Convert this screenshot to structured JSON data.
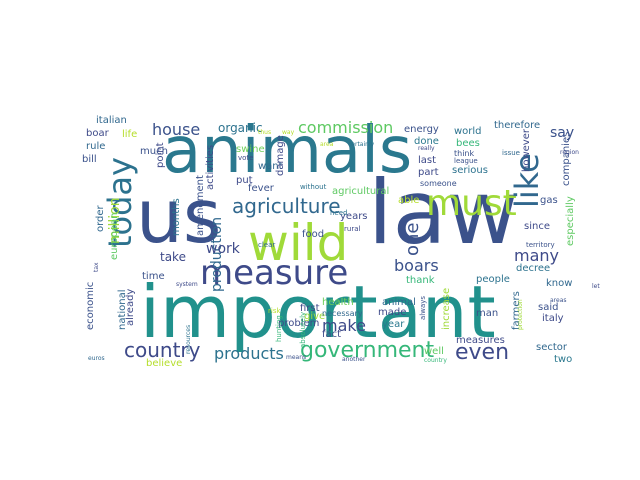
{
  "cloud": {
    "words": [
      {
        "text": "important",
        "color": "#21918c"
      },
      {
        "text": "animals",
        "color": "#2a788e"
      },
      {
        "text": "law",
        "color": "#3b528b"
      },
      {
        "text": "wild",
        "color": "#a0da39"
      },
      {
        "text": "us",
        "color": "#3b528b"
      },
      {
        "text": "measure",
        "color": "#3e4a89"
      },
      {
        "text": "today",
        "color": "#2c728e"
      },
      {
        "text": "must",
        "color": "#a0da39"
      },
      {
        "text": "like",
        "color": "#31688e"
      },
      {
        "text": "government",
        "color": "#35b779"
      },
      {
        "text": "agriculture",
        "color": "#31688e"
      },
      {
        "text": "country",
        "color": "#3e4a89"
      },
      {
        "text": "products",
        "color": "#2c728e"
      },
      {
        "text": "even",
        "color": "#3e4a89"
      },
      {
        "text": "commission",
        "color": "#5ec962"
      },
      {
        "text": "house",
        "color": "#3b528b"
      },
      {
        "text": "make",
        "color": "#3e4a89"
      },
      {
        "text": "boars",
        "color": "#3b528b"
      },
      {
        "text": "one",
        "color": "#3b528b"
      },
      {
        "text": "many",
        "color": "#3e4a89"
      },
      {
        "text": "million",
        "color": "#a0da39"
      },
      {
        "text": "production",
        "color": "#31688e"
      },
      {
        "text": "work",
        "color": "#3e4a89"
      },
      {
        "text": "say",
        "color": "#3b528b"
      },
      {
        "text": "organic",
        "color": "#2c728e"
      },
      {
        "text": "want",
        "color": "#31688e"
      },
      {
        "text": "take",
        "color": "#3e4a89"
      },
      {
        "text": "italian",
        "color": "#31688e"
      },
      {
        "text": "boar",
        "color": "#3e4a89"
      },
      {
        "text": "rule",
        "color": "#31688e"
      },
      {
        "text": "bill",
        "color": "#3b528b"
      },
      {
        "text": "life",
        "color": "#b5de2b"
      },
      {
        "text": "much",
        "color": "#3b528b"
      },
      {
        "text": "months",
        "color": "#2c728e"
      },
      {
        "text": "fever",
        "color": "#3b528b"
      },
      {
        "text": "swine",
        "color": "#6ece58"
      },
      {
        "text": "first",
        "color": "#3e4a89"
      },
      {
        "text": "agricultural",
        "color": "#5ec962"
      },
      {
        "text": "energy",
        "color": "#3b528b"
      },
      {
        "text": "world",
        "color": "#2c728e"
      },
      {
        "text": "bees",
        "color": "#35b779"
      },
      {
        "text": "done",
        "color": "#2a788e"
      },
      {
        "text": "therefore",
        "color": "#31688e"
      },
      {
        "text": "however",
        "color": "#3e4a89"
      },
      {
        "text": "companies",
        "color": "#3b528b"
      },
      {
        "text": "especially",
        "color": "#5ec962"
      },
      {
        "text": "gas",
        "color": "#3b528b"
      },
      {
        "text": "last",
        "color": "#3e4a89"
      },
      {
        "text": "part",
        "color": "#3e4a89"
      },
      {
        "text": "serious",
        "color": "#2c728e"
      },
      {
        "text": "since",
        "color": "#3e4a89"
      },
      {
        "text": "decree",
        "color": "#2c728e"
      },
      {
        "text": "know",
        "color": "#31688e"
      },
      {
        "text": "italy",
        "color": "#3e4a89"
      },
      {
        "text": "said",
        "color": "#3b528b"
      },
      {
        "text": "sector",
        "color": "#31688e"
      },
      {
        "text": "two",
        "color": "#2a788e"
      },
      {
        "text": "people",
        "color": "#2c728e"
      },
      {
        "text": "thank",
        "color": "#35b779"
      },
      {
        "text": "increase",
        "color": "#a0da39"
      },
      {
        "text": "farmers",
        "color": "#31688e"
      },
      {
        "text": "measures",
        "color": "#3e4a89"
      },
      {
        "text": "man",
        "color": "#3b528b"
      },
      {
        "text": "well",
        "color": "#5ec962"
      },
      {
        "text": "made",
        "color": "#3e4a89"
      },
      {
        "text": "year",
        "color": "#2a788e"
      },
      {
        "text": "health",
        "color": "#6ece58"
      },
      {
        "text": "animal",
        "color": "#31688e"
      },
      {
        "text": "problem",
        "color": "#3e4a89"
      },
      {
        "text": "fact",
        "color": "#3e4a89"
      },
      {
        "text": "economic",
        "color": "#3b528b"
      },
      {
        "text": "order",
        "color": "#31688e"
      },
      {
        "text": "european",
        "color": "#5ec962"
      },
      {
        "text": "time",
        "color": "#3b528b"
      },
      {
        "text": "national",
        "color": "#31688e"
      },
      {
        "text": "already",
        "color": "#3e4a89"
      },
      {
        "text": "believe",
        "color": "#b5de2b"
      },
      {
        "text": "point",
        "color": "#3e4a89"
      },
      {
        "text": "amendment",
        "color": "#3b528b"
      },
      {
        "text": "activities",
        "color": "#3e4a89"
      },
      {
        "text": "put",
        "color": "#3e4a89"
      },
      {
        "text": "damage",
        "color": "#3e4a89"
      },
      {
        "text": "food",
        "color": "#3b528b"
      },
      {
        "text": "give",
        "color": "#a0da39"
      },
      {
        "text": "years",
        "color": "#3e4a89"
      },
      {
        "text": "able",
        "color": "#b5de2b"
      },
      {
        "text": "necessary",
        "color": "#31688e"
      },
      {
        "text": "without",
        "color": "#2c728e"
      },
      {
        "text": "someone",
        "color": "#3b528b"
      },
      {
        "text": "hunting",
        "color": "#35b779"
      },
      {
        "text": "absolutely",
        "color": "#35b779"
      },
      {
        "text": "rural",
        "color": "#3e4a89"
      },
      {
        "text": "need",
        "color": "#2c728e"
      },
      {
        "text": "risk",
        "color": "#b5de2b"
      },
      {
        "text": "clear",
        "color": "#31688e"
      },
      {
        "text": "vote",
        "color": "#3e4a89"
      },
      {
        "text": "think",
        "color": "#3b528b"
      },
      {
        "text": "league",
        "color": "#3b528b"
      },
      {
        "text": "issue",
        "color": "#31688e"
      },
      {
        "text": "territory",
        "color": "#3b528b"
      },
      {
        "text": "always",
        "color": "#3b528b"
      },
      {
        "text": "areas",
        "color": "#3b528b"
      },
      {
        "text": "euros",
        "color": "#31688e"
      },
      {
        "text": "another",
        "color": "#3b528b"
      },
      {
        "text": "resources",
        "color": "#2c728e"
      },
      {
        "text": "system",
        "color": "#3e4a89"
      },
      {
        "text": "means",
        "color": "#3b528b"
      },
      {
        "text": "certainly",
        "color": "#2c728e"
      },
      {
        "text": "really",
        "color": "#3e4a89"
      },
      {
        "text": "area",
        "color": "#b5de2b"
      },
      {
        "text": "way",
        "color": "#b5de2b"
      },
      {
        "text": "thus",
        "color": "#b5de2b"
      },
      {
        "text": "protection",
        "color": "#a0da39"
      },
      {
        "text": "tax",
        "color": "#3e4a89"
      },
      {
        "text": "region",
        "color": "#3e4a89"
      },
      {
        "text": "country",
        "color": "#35b779"
      },
      {
        "text": "let",
        "color": "#3e4a89"
      }
    ]
  }
}
